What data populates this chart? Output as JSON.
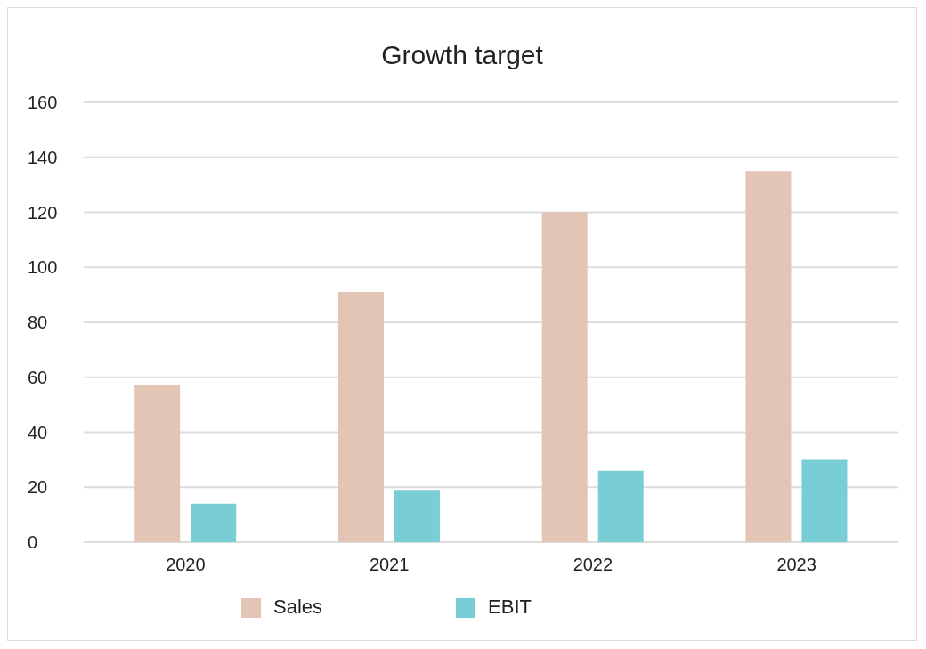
{
  "chart_data": {
    "type": "bar",
    "title": "Growth target",
    "categories": [
      "2020",
      "2021",
      "2022",
      "2023"
    ],
    "series": [
      {
        "name": "Sales",
        "color": "#e2c5b4",
        "values": [
          57,
          91,
          120,
          135
        ]
      },
      {
        "name": "EBIT",
        "color": "#79cdd4",
        "values": [
          14,
          19,
          26,
          30
        ]
      }
    ],
    "ylim": [
      0,
      160
    ],
    "yticks": [
      0,
      20,
      40,
      60,
      80,
      100,
      120,
      140,
      160
    ],
    "grid": "y",
    "legend": "bottom"
  }
}
